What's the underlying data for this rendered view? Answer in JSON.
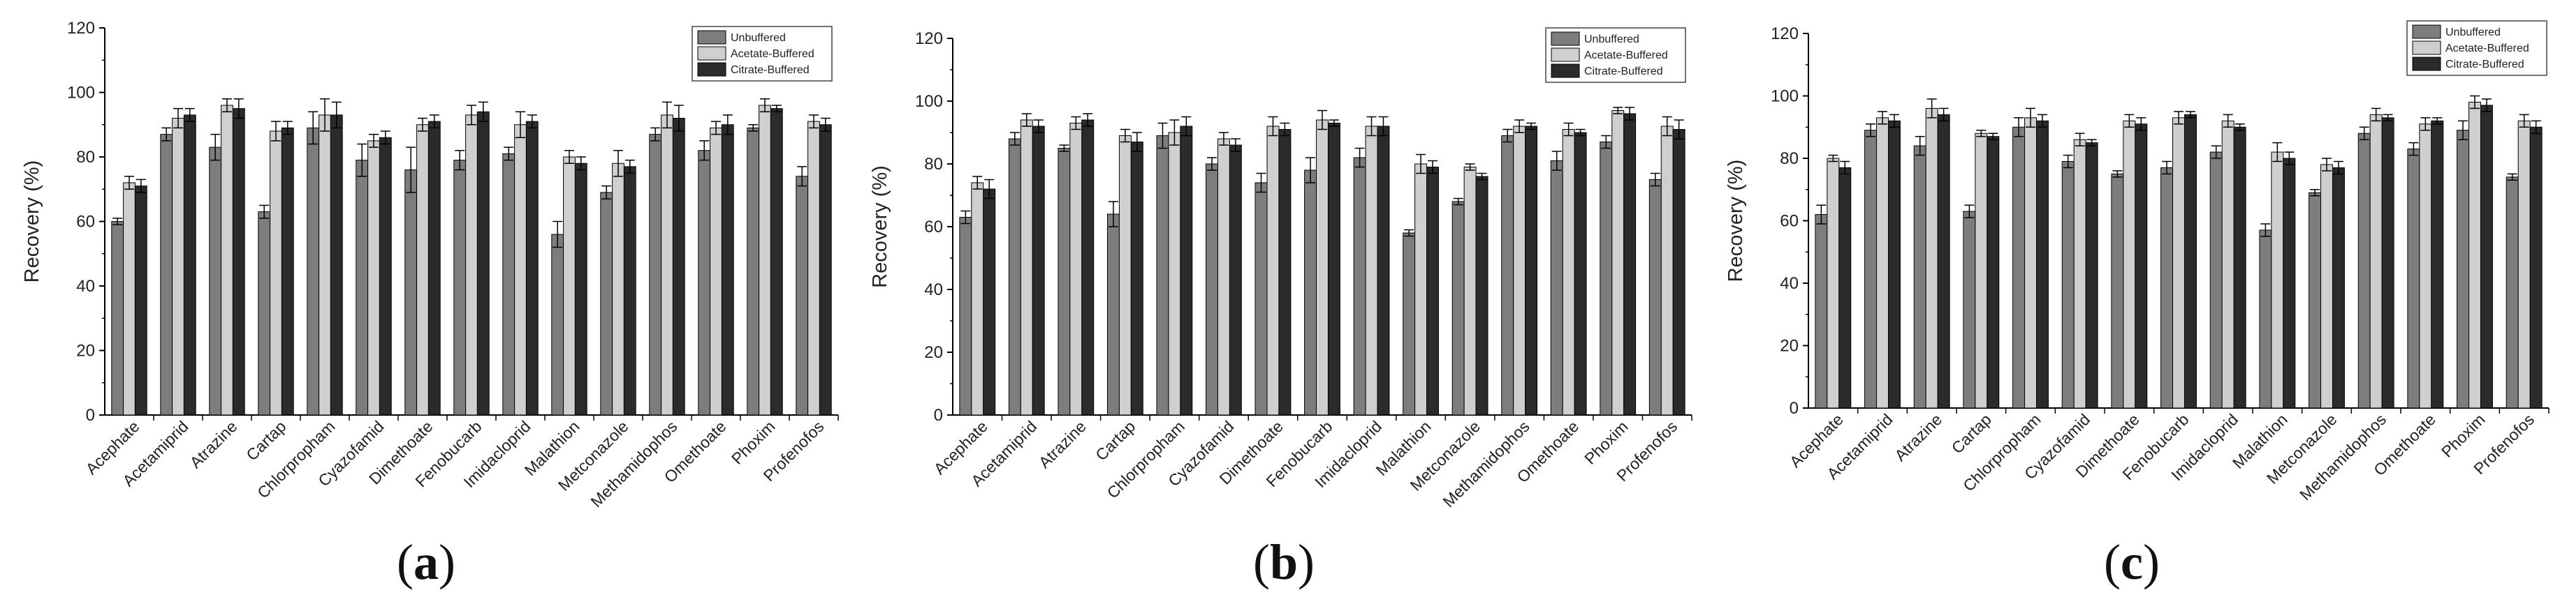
{
  "figure": {
    "panels": [
      {
        "label_open": "(",
        "label_letter": "a",
        "label_close": ")"
      },
      {
        "label_open": "(",
        "label_letter": "b",
        "label_close": ")"
      },
      {
        "label_open": "(",
        "label_letter": "c",
        "label_close": ")"
      }
    ]
  },
  "chart_data": [
    {
      "type": "bar",
      "ylabel": "Recovery (%)",
      "xlabel": "",
      "ylim": [
        0,
        120
      ],
      "yticks": [
        0,
        20,
        40,
        60,
        80,
        100,
        120
      ],
      "legend_position": "top-right",
      "categories": [
        "Acephate",
        "Acetamiprid",
        "Atrazine",
        "Cartap",
        "Chlorpropham",
        "Cyazofamid",
        "Dimethoate",
        "Fenobucarb",
        "Imidacloprid",
        "Malathion",
        "Metconazole",
        "Methamidophos",
        "Omethoate",
        "Phoxim",
        "Profenofos"
      ],
      "series": [
        {
          "name": "Unbuffered",
          "color": "#7d7d7d",
          "values": [
            60,
            87,
            83,
            63,
            89,
            79,
            76,
            79,
            81,
            56,
            69,
            87,
            82,
            89,
            74
          ],
          "errors": [
            1,
            2,
            4,
            2,
            5,
            5,
            7,
            3,
            2,
            4,
            2,
            2,
            3,
            1,
            3
          ]
        },
        {
          "name": "Acetate-Buffered",
          "color": "#cfcfcf",
          "values": [
            72,
            92,
            96,
            88,
            93,
            85,
            90,
            93,
            90,
            80,
            78,
            93,
            89,
            96,
            91
          ],
          "errors": [
            2,
            3,
            2,
            3,
            5,
            2,
            2,
            3,
            4,
            2,
            4,
            4,
            2,
            2,
            2
          ]
        },
        {
          "name": "Citrate-Buffered",
          "color": "#2b2b2b",
          "values": [
            71,
            93,
            95,
            89,
            93,
            86,
            91,
            94,
            91,
            78,
            77,
            92,
            90,
            95,
            90
          ],
          "errors": [
            2,
            2,
            3,
            2,
            4,
            2,
            2,
            3,
            2,
            2,
            2,
            4,
            3,
            1,
            2
          ]
        }
      ]
    },
    {
      "type": "bar",
      "ylabel": "Recovery (%)",
      "xlabel": "",
      "ylim": [
        0,
        120
      ],
      "yticks": [
        0,
        20,
        40,
        60,
        80,
        100,
        120
      ],
      "legend_position": "top-right",
      "categories": [
        "Acephate",
        "Acetamiprid",
        "Atrazine",
        "Cartap",
        "Chlorpropham",
        "Cyazofamid",
        "Dimethoate",
        "Fenobucarb",
        "Imidacloprid",
        "Malathion",
        "Metconazole",
        "Methamidophos",
        "Omethoate",
        "Phoxim",
        "Profenofos"
      ],
      "series": [
        {
          "name": "Unbuffered",
          "color": "#7d7d7d",
          "values": [
            63,
            88,
            85,
            64,
            89,
            80,
            74,
            78,
            82,
            58,
            68,
            89,
            81,
            87,
            75
          ],
          "errors": [
            2,
            2,
            1,
            4,
            4,
            2,
            3,
            4,
            3,
            1,
            1,
            2,
            3,
            2,
            2
          ]
        },
        {
          "name": "Acetate-Buffered",
          "color": "#cfcfcf",
          "values": [
            74,
            94,
            93,
            89,
            90,
            88,
            92,
            94,
            92,
            80,
            79,
            92,
            91,
            97,
            92
          ],
          "errors": [
            2,
            2,
            2,
            2,
            4,
            2,
            3,
            3,
            3,
            3,
            1,
            2,
            2,
            1,
            3
          ]
        },
        {
          "name": "Citrate-Buffered",
          "color": "#2b2b2b",
          "values": [
            72,
            92,
            94,
            87,
            92,
            86,
            91,
            93,
            92,
            79,
            76,
            92,
            90,
            96,
            91
          ],
          "errors": [
            3,
            2,
            2,
            3,
            3,
            2,
            2,
            1,
            3,
            2,
            1,
            1,
            1,
            2,
            3
          ]
        }
      ]
    },
    {
      "type": "bar",
      "ylabel": "Recovery (%)",
      "xlabel": "",
      "ylim": [
        0,
        120
      ],
      "yticks": [
        0,
        20,
        40,
        60,
        80,
        100,
        120
      ],
      "legend_position": "top-right",
      "categories": [
        "Acephate",
        "Acetamiprid",
        "Atrazine",
        "Cartap",
        "Chlorpropham",
        "Cyazofamid",
        "Dimethoate",
        "Fenobucarb",
        "Imidacloprid",
        "Malathion",
        "Metconazole",
        "Methamidophos",
        "Omethoate",
        "Phoxim",
        "Profenofos"
      ],
      "series": [
        {
          "name": "Unbuffered",
          "color": "#7d7d7d",
          "values": [
            62,
            89,
            84,
            63,
            90,
            79,
            75,
            77,
            82,
            57,
            69,
            88,
            83,
            89,
            74
          ],
          "errors": [
            3,
            2,
            3,
            2,
            3,
            2,
            1,
            2,
            2,
            2,
            1,
            2,
            2,
            3,
            1
          ]
        },
        {
          "name": "Acetate-Buffered",
          "color": "#cfcfcf",
          "values": [
            80,
            93,
            96,
            88,
            93,
            86,
            92,
            93,
            92,
            82,
            78,
            94,
            91,
            98,
            92
          ],
          "errors": [
            1,
            2,
            3,
            1,
            3,
            2,
            2,
            2,
            2,
            3,
            2,
            2,
            2,
            2,
            2
          ]
        },
        {
          "name": "Citrate-Buffered",
          "color": "#2b2b2b",
          "values": [
            77,
            92,
            94,
            87,
            92,
            85,
            91,
            94,
            90,
            80,
            77,
            93,
            92,
            97,
            90
          ],
          "errors": [
            2,
            2,
            2,
            1,
            2,
            1,
            2,
            1,
            1,
            2,
            2,
            1,
            1,
            2,
            2
          ]
        }
      ]
    }
  ]
}
